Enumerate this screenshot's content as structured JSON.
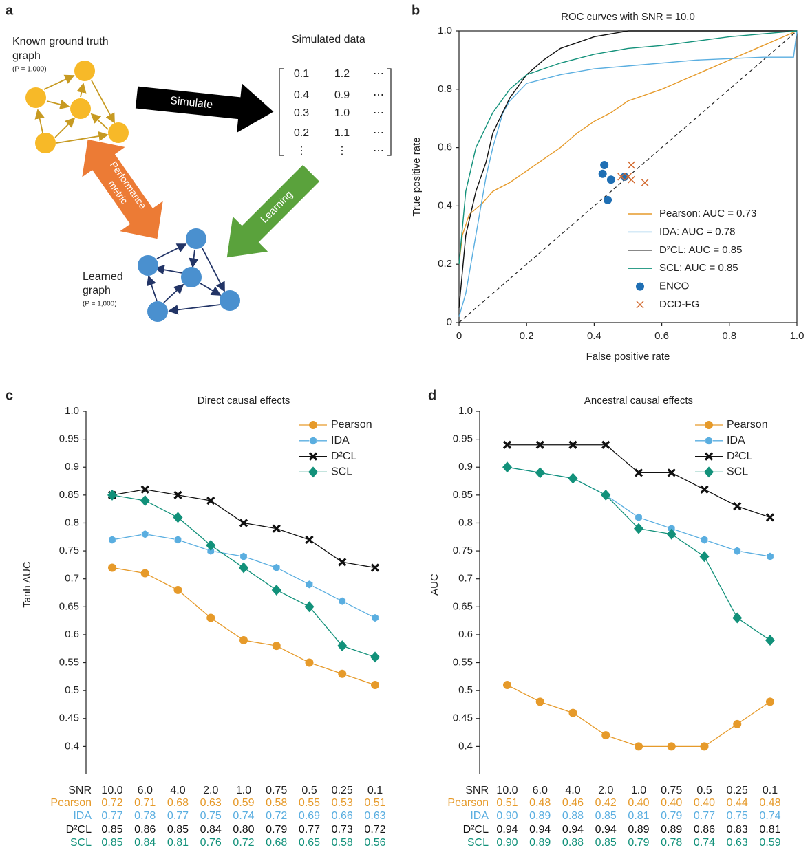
{
  "diagram": {
    "panel": "a",
    "truth_title": [
      "Known ground truth",
      "graph"
    ],
    "truth_p": "(P = 1,000)",
    "simulated_title": "Simulated data",
    "matrix": [
      [
        "0.1",
        "1.2",
        "⋯"
      ],
      [
        "0.4",
        "0.9",
        "⋯"
      ],
      [
        "0.3",
        "1.0",
        "⋯"
      ],
      [
        "0.2",
        "1.1",
        "⋯"
      ],
      [
        "⋮",
        "⋮",
        "⋯"
      ]
    ],
    "simulate": "Simulate",
    "learning": "Learning",
    "performance": [
      "Performance",
      "metric"
    ],
    "learned_title": [
      "Learned",
      "graph"
    ],
    "learned_p": "(P = 1,000)"
  },
  "chart_data": [
    {
      "type": "line",
      "panel": "b",
      "title": "ROC curves with SNR = 10.0",
      "x_label": "False positive rate",
      "y_label": "True positive rate",
      "xlim": [
        0,
        1
      ],
      "ylim": [
        0,
        1
      ],
      "xticks": [
        0,
        0.2,
        0.4,
        0.6,
        0.8,
        {
          "value": 1,
          "label": "1.0"
        }
      ],
      "yticks": [
        0,
        0.2,
        0.4,
        0.6,
        0.8,
        {
          "value": 1,
          "label": "1.0"
        }
      ],
      "diagonal": true,
      "legend": "lower right",
      "series": [
        {
          "name": "Pearson: AUC = 0.73",
          "color": "#e69a2a",
          "x": [
            0,
            0.01,
            0.03,
            0.07,
            0.1,
            0.15,
            0.2,
            0.25,
            0.3,
            0.35,
            0.4,
            0.45,
            0.5,
            0.6,
            0.7,
            0.8,
            0.9,
            1
          ],
          "values": [
            0.2,
            0.3,
            0.37,
            0.41,
            0.45,
            0.48,
            0.52,
            0.56,
            0.6,
            0.65,
            0.69,
            0.72,
            0.76,
            0.8,
            0.85,
            0.9,
            0.95,
            1
          ]
        },
        {
          "name": "IDA: AUC = 0.78",
          "color": "#5aaee0",
          "x": [
            0,
            0.02,
            0.05,
            0.08,
            0.1,
            0.13,
            0.15,
            0.2,
            0.3,
            0.4,
            0.5,
            0.7,
            0.9,
            0.99,
            1
          ],
          "values": [
            0.02,
            0.1,
            0.3,
            0.5,
            0.6,
            0.72,
            0.76,
            0.82,
            0.85,
            0.87,
            0.88,
            0.9,
            0.91,
            0.91,
            1
          ]
        },
        {
          "name": "D²CL: AUC = 0.85",
          "color": "#111111",
          "x": [
            0,
            0.02,
            0.05,
            0.08,
            0.1,
            0.15,
            0.2,
            0.25,
            0.3,
            0.4,
            0.5,
            1
          ],
          "values": [
            0.05,
            0.3,
            0.45,
            0.55,
            0.65,
            0.77,
            0.85,
            0.9,
            0.94,
            0.98,
            1,
            1
          ]
        },
        {
          "name": "SCL: AUC = 0.85",
          "color": "#12917a",
          "x": [
            0,
            0.02,
            0.05,
            0.1,
            0.15,
            0.2,
            0.3,
            0.4,
            0.5,
            0.6,
            0.8,
            1
          ],
          "values": [
            0.2,
            0.45,
            0.6,
            0.72,
            0.8,
            0.85,
            0.89,
            0.92,
            0.94,
            0.95,
            0.98,
            1
          ]
        }
      ],
      "points": [
        {
          "name": "ENCO",
          "color": "#1f6fb4",
          "marker": "circle",
          "x": [
            0.43,
            0.425,
            0.45,
            0.44,
            0.49
          ],
          "values": [
            0.54,
            0.51,
            0.49,
            0.42,
            0.5
          ]
        },
        {
          "name": "DCD-FG",
          "color": "#d2692e",
          "marker": "x",
          "x": [
            0.51,
            0.5,
            0.51,
            0.55,
            0.48
          ],
          "values": [
            0.54,
            0.5,
            0.49,
            0.48,
            0.5
          ]
        }
      ]
    },
    {
      "type": "line",
      "panel": "c",
      "title": "Direct causal effects",
      "y_label": "Tanh AUC",
      "table_header": "SNR",
      "categories": [
        "10.0",
        "6.0",
        "4.0",
        "2.0",
        "1.0",
        "0.75",
        "0.5",
        "0.25",
        "0.1"
      ],
      "ylim": [
        0.35,
        1
      ],
      "yticks": [
        0.4,
        0.45,
        0.5,
        0.55,
        0.6,
        0.65,
        0.7,
        0.75,
        0.8,
        0.85,
        0.9,
        0.95,
        {
          "value": 1,
          "label": "1.0"
        }
      ],
      "legend": "upper right",
      "series": [
        {
          "name": "Pearson",
          "color": "#e69a2a",
          "marker": "circle",
          "values": [
            0.72,
            0.71,
            0.68,
            0.63,
            0.59,
            0.58,
            0.55,
            0.53,
            0.51
          ],
          "value_labels": [
            "0.72",
            "0.71",
            "0.68",
            "0.63",
            "0.59",
            "0.58",
            "0.55",
            "0.53",
            "0.51"
          ]
        },
        {
          "name": "IDA",
          "color": "#5aaee0",
          "marker": "hexagon",
          "values": [
            0.77,
            0.78,
            0.77,
            0.75,
            0.74,
            0.72,
            0.69,
            0.66,
            0.63
          ],
          "value_labels": [
            "0.77",
            "0.78",
            "0.77",
            "0.75",
            "0.74",
            "0.72",
            "0.69",
            "0.66",
            "0.63"
          ]
        },
        {
          "name": "D²CL",
          "color": "#111111",
          "marker": "x",
          "values": [
            0.85,
            0.86,
            0.85,
            0.84,
            0.8,
            0.79,
            0.77,
            0.73,
            0.72
          ],
          "value_labels": [
            "0.85",
            "0.86",
            "0.85",
            "0.84",
            "0.80",
            "0.79",
            "0.77",
            "0.73",
            "0.72"
          ]
        },
        {
          "name": "SCL",
          "color": "#12917a",
          "marker": "diamond",
          "values": [
            0.85,
            0.84,
            0.81,
            0.76,
            0.72,
            0.68,
            0.65,
            0.58,
            0.56
          ],
          "value_labels": [
            "0.85",
            "0.84",
            "0.81",
            "0.76",
            "0.72",
            "0.68",
            "0.65",
            "0.58",
            "0.56"
          ]
        }
      ]
    },
    {
      "type": "line",
      "panel": "d",
      "title": "Ancestral causal effects",
      "y_label": "AUC",
      "table_header": "SNR",
      "categories": [
        "10.0",
        "6.0",
        "4.0",
        "2.0",
        "1.0",
        "0.75",
        "0.5",
        "0.25",
        "0.1"
      ],
      "ylim": [
        0.35,
        1
      ],
      "yticks": [
        0.4,
        0.45,
        0.5,
        0.55,
        0.6,
        0.65,
        0.7,
        0.75,
        0.8,
        0.85,
        0.9,
        0.95,
        {
          "value": 1,
          "label": "1.0"
        }
      ],
      "legend": "upper right",
      "series": [
        {
          "name": "Pearson",
          "color": "#e69a2a",
          "marker": "circle",
          "values": [
            0.51,
            0.48,
            0.46,
            0.42,
            0.4,
            0.4,
            0.4,
            0.44,
            0.48
          ],
          "value_labels": [
            "0.51",
            "0.48",
            "0.46",
            "0.42",
            "0.40",
            "0.40",
            "0.40",
            "0.44",
            "0.48"
          ]
        },
        {
          "name": "IDA",
          "color": "#5aaee0",
          "marker": "hexagon",
          "values": [
            0.9,
            0.89,
            0.88,
            0.85,
            0.81,
            0.79,
            0.77,
            0.75,
            0.74
          ],
          "value_labels": [
            "0.90",
            "0.89",
            "0.88",
            "0.85",
            "0.81",
            "0.79",
            "0.77",
            "0.75",
            "0.74"
          ]
        },
        {
          "name": "D²CL",
          "color": "#111111",
          "marker": "x",
          "values": [
            0.94,
            0.94,
            0.94,
            0.94,
            0.89,
            0.89,
            0.86,
            0.83,
            0.81
          ],
          "value_labels": [
            "0.94",
            "0.94",
            "0.94",
            "0.94",
            "0.89",
            "0.89",
            "0.86",
            "0.83",
            "0.81"
          ]
        },
        {
          "name": "SCL",
          "color": "#12917a",
          "marker": "diamond",
          "values": [
            0.9,
            0.89,
            0.88,
            0.85,
            0.79,
            0.78,
            0.74,
            0.63,
            0.59
          ],
          "value_labels": [
            "0.90",
            "0.89",
            "0.88",
            "0.85",
            "0.79",
            "0.78",
            "0.74",
            "0.63",
            "0.59"
          ]
        }
      ]
    }
  ]
}
